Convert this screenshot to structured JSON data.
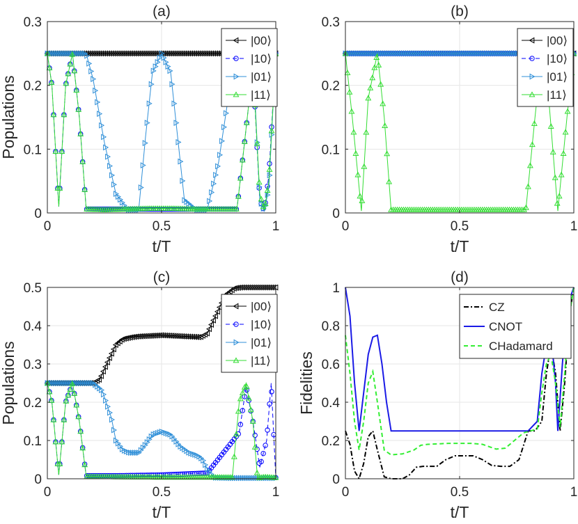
{
  "figure": {
    "panel_order": [
      "a",
      "b",
      "c",
      "d"
    ]
  },
  "chart_data": [
    {
      "id": "a",
      "type": "line",
      "title": "(a)",
      "xlabel": "t/T",
      "ylabel": "Populations",
      "xlim": [
        0,
        1
      ],
      "ylim": [
        0,
        0.3
      ],
      "xticks": [
        0,
        0.5,
        1
      ],
      "xtick_labels": [
        "0",
        "0.5",
        "1"
      ],
      "yticks": [
        0,
        0.1,
        0.2,
        0.3
      ],
      "ytick_labels": [
        "0",
        "0.1",
        "0.2",
        "0.3"
      ],
      "grid": true,
      "legend_position": "top-right",
      "series": [
        {
          "name": "|00⟩",
          "color": "#000000",
          "marker": "triangle-left",
          "dash": "solid",
          "x": [
            0,
            0.1,
            0.2,
            0.3,
            0.4,
            0.5,
            0.6,
            0.7,
            0.8,
            0.9,
            1.0
          ],
          "y": [
            0.25,
            0.25,
            0.25,
            0.25,
            0.25,
            0.25,
            0.25,
            0.25,
            0.25,
            0.25,
            0.25
          ]
        },
        {
          "name": "|10⟩",
          "color": "#0000ff",
          "marker": "circle",
          "dash": "dashed",
          "x": [
            0,
            0.02,
            0.05,
            0.08,
            0.11,
            0.14,
            0.17,
            0.25,
            0.35,
            0.45,
            0.5,
            0.55,
            0.65,
            0.75,
            0.83,
            0.86,
            0.9,
            0.93,
            0.95,
            0.97,
            1.0
          ],
          "y": [
            0.25,
            0.2,
            0.01,
            0.2,
            0.25,
            0.15,
            0.006,
            0.006,
            0.006,
            0.006,
            0.006,
            0.006,
            0.006,
            0.006,
            0.006,
            0.1,
            0.23,
            0.02,
            0.003,
            0.06,
            0.25
          ]
        },
        {
          "name": "|01⟩",
          "color": "#2f8fd8",
          "marker": "triangle-right",
          "dash": "solid",
          "x": [
            0,
            0.1,
            0.17,
            0.2,
            0.25,
            0.3,
            0.35,
            0.4,
            0.43,
            0.46,
            0.5,
            0.54,
            0.57,
            0.6,
            0.65,
            0.7,
            0.75,
            0.8,
            0.83,
            0.86,
            0.9,
            0.93,
            0.95,
            0.97,
            1.0
          ],
          "y": [
            0.25,
            0.25,
            0.25,
            0.21,
            0.11,
            0.03,
            0.005,
            0.005,
            0.12,
            0.22,
            0.25,
            0.22,
            0.12,
            0.02,
            0.005,
            0.005,
            0.08,
            0.2,
            0.25,
            0.25,
            0.25,
            0.02,
            0.003,
            0.04,
            0.25
          ]
        },
        {
          "name": "|11⟩",
          "color": "#33dd33",
          "marker": "triangle-up",
          "dash": "solid",
          "x": [
            0,
            0.02,
            0.05,
            0.08,
            0.11,
            0.14,
            0.17,
            0.25,
            0.35,
            0.45,
            0.5,
            0.55,
            0.65,
            0.75,
            0.83,
            0.86,
            0.9,
            0.93,
            0.95,
            0.97,
            1.0
          ],
          "y": [
            0.25,
            0.2,
            0.01,
            0.2,
            0.25,
            0.15,
            0.006,
            0.005,
            0.006,
            0.007,
            0.007,
            0.007,
            0.006,
            0.006,
            0.006,
            0.1,
            0.23,
            0.03,
            0.004,
            0.05,
            0.25
          ]
        }
      ]
    },
    {
      "id": "b",
      "type": "line",
      "title": "(b)",
      "xlabel": "t/T",
      "ylabel": "",
      "xlim": [
        0,
        1
      ],
      "ylim": [
        0,
        0.3
      ],
      "xticks": [
        0,
        0.5,
        1
      ],
      "xtick_labels": [
        "0",
        "0.5",
        "1"
      ],
      "yticks": [
        0,
        0.1,
        0.2,
        0.3
      ],
      "ytick_labels": [
        "0",
        "0.1",
        "0.2",
        "0.3"
      ],
      "grid": true,
      "legend_position": "top-right",
      "series": [
        {
          "name": "|00⟩",
          "color": "#000000",
          "marker": "triangle-left",
          "dash": "solid",
          "x": [
            0,
            0.1,
            0.2,
            0.3,
            0.4,
            0.5,
            0.6,
            0.7,
            0.8,
            0.9,
            1.0
          ],
          "y": [
            0.25,
            0.25,
            0.25,
            0.25,
            0.25,
            0.25,
            0.25,
            0.25,
            0.25,
            0.25,
            0.25
          ]
        },
        {
          "name": "|10⟩",
          "color": "#0000ff",
          "marker": "circle",
          "dash": "dashed",
          "x": [
            0,
            0.1,
            0.2,
            0.3,
            0.4,
            0.5,
            0.6,
            0.7,
            0.8,
            0.9,
            1.0
          ],
          "y": [
            0.25,
            0.25,
            0.25,
            0.25,
            0.25,
            0.25,
            0.25,
            0.25,
            0.25,
            0.25,
            0.25
          ]
        },
        {
          "name": "|01⟩",
          "color": "#2f8fd8",
          "marker": "triangle-right",
          "dash": "solid",
          "x": [
            0,
            0.1,
            0.2,
            0.3,
            0.4,
            0.5,
            0.6,
            0.7,
            0.8,
            0.9,
            1.0
          ],
          "y": [
            0.25,
            0.25,
            0.25,
            0.25,
            0.25,
            0.25,
            0.25,
            0.25,
            0.25,
            0.25,
            0.25
          ]
        },
        {
          "name": "|11⟩",
          "color": "#33dd33",
          "marker": "triangle-up",
          "dash": "solid",
          "x": [
            0,
            0.03,
            0.07,
            0.1,
            0.14,
            0.17,
            0.2,
            0.3,
            0.4,
            0.5,
            0.6,
            0.7,
            0.79,
            0.83,
            0.86,
            0.89,
            0.93,
            0.97,
            1.0
          ],
          "y": [
            0.25,
            0.15,
            0.003,
            0.18,
            0.25,
            0.15,
            0.005,
            0.005,
            0.005,
            0.005,
            0.005,
            0.005,
            0.005,
            0.15,
            0.25,
            0.18,
            0.003,
            0.15,
            0.25
          ]
        }
      ]
    },
    {
      "id": "c",
      "type": "line",
      "title": "(c)",
      "xlabel": "t/T",
      "ylabel": "Populations",
      "xlim": [
        0,
        1
      ],
      "ylim": [
        0,
        0.5
      ],
      "xticks": [
        0,
        0.5,
        1
      ],
      "xtick_labels": [
        "0",
        "0.5",
        "1"
      ],
      "yticks": [
        0,
        0.1,
        0.2,
        0.3,
        0.4,
        0.5
      ],
      "ytick_labels": [
        "0",
        "0.1",
        "0.2",
        "0.3",
        "0.4",
        "0.5"
      ],
      "grid": true,
      "legend_position": "top-right",
      "series": [
        {
          "name": "|00⟩",
          "color": "#000000",
          "marker": "triangle-left",
          "dash": "solid",
          "x": [
            0,
            0.1,
            0.2,
            0.23,
            0.26,
            0.3,
            0.33,
            0.37,
            0.4,
            0.5,
            0.6,
            0.67,
            0.7,
            0.74,
            0.78,
            0.82,
            0.85,
            0.9,
            1.0
          ],
          "y": [
            0.25,
            0.25,
            0.25,
            0.26,
            0.3,
            0.35,
            0.365,
            0.37,
            0.372,
            0.375,
            0.372,
            0.37,
            0.38,
            0.43,
            0.48,
            0.498,
            0.5,
            0.5,
            0.5
          ]
        },
        {
          "name": "|10⟩",
          "color": "#0000ff",
          "marker": "circle",
          "dash": "dashed",
          "x": [
            0,
            0.02,
            0.05,
            0.08,
            0.11,
            0.14,
            0.17,
            0.3,
            0.5,
            0.7,
            0.84,
            0.87,
            0.9,
            0.93,
            0.96,
            0.98,
            1.0
          ],
          "y": [
            0.25,
            0.2,
            0.01,
            0.2,
            0.25,
            0.15,
            0.008,
            0.008,
            0.01,
            0.015,
            0.12,
            0.24,
            0.15,
            0.03,
            0.1,
            0.25,
            0.003
          ]
        },
        {
          "name": "|01⟩",
          "color": "#2f8fd8",
          "marker": "triangle-right",
          "dash": "solid",
          "x": [
            0,
            0.1,
            0.2,
            0.24,
            0.28,
            0.3,
            0.33,
            0.36,
            0.4,
            0.43,
            0.46,
            0.5,
            0.54,
            0.58,
            0.62,
            0.66,
            0.68,
            0.7,
            0.73,
            0.8,
            0.9,
            1.0
          ],
          "y": [
            0.25,
            0.25,
            0.25,
            0.23,
            0.16,
            0.1,
            0.075,
            0.068,
            0.068,
            0.09,
            0.115,
            0.123,
            0.115,
            0.085,
            0.068,
            0.06,
            0.05,
            0.025,
            0.003,
            0.002,
            0.002,
            0.002
          ]
        },
        {
          "name": "|11⟩",
          "color": "#33dd33",
          "marker": "triangle-up",
          "dash": "solid",
          "x": [
            0,
            0.02,
            0.05,
            0.08,
            0.11,
            0.14,
            0.17,
            0.3,
            0.5,
            0.7,
            0.81,
            0.84,
            0.87,
            0.9,
            0.92,
            0.95,
            1.0
          ],
          "y": [
            0.25,
            0.2,
            0.01,
            0.2,
            0.25,
            0.15,
            0.006,
            0.005,
            0.004,
            0.004,
            0.004,
            0.2,
            0.25,
            0.15,
            0.002,
            0.005,
            0.003
          ]
        }
      ]
    },
    {
      "id": "d",
      "type": "line",
      "title": "(d)",
      "xlabel": "t/T",
      "ylabel": "Fidelities",
      "xlim": [
        0,
        1
      ],
      "ylim": [
        0,
        1
      ],
      "xticks": [
        0,
        0.5,
        1
      ],
      "xtick_labels": [
        "0",
        "0.5",
        "1"
      ],
      "yticks": [
        0,
        0.2,
        0.4,
        0.6,
        0.8,
        1
      ],
      "ytick_labels": [
        "0",
        "0.2",
        "0.4",
        "0.6",
        "0.8",
        "1"
      ],
      "grid": true,
      "legend_position": "top-right",
      "series": [
        {
          "name": "CZ",
          "color": "#000000",
          "marker": "none",
          "dash": "dashdot",
          "x": [
            0,
            0.02,
            0.04,
            0.06,
            0.08,
            0.1,
            0.12,
            0.14,
            0.17,
            0.2,
            0.25,
            0.28,
            0.31,
            0.34,
            0.4,
            0.44,
            0.48,
            0.52,
            0.56,
            0.6,
            0.64,
            0.68,
            0.72,
            0.76,
            0.8,
            0.83,
            0.86,
            0.88,
            0.9,
            0.92,
            0.94,
            0.96,
            0.98,
            1.0
          ],
          "y": [
            0.25,
            0.18,
            0.04,
            0.0,
            0.08,
            0.22,
            0.25,
            0.15,
            0.01,
            0.0,
            0.0,
            0.02,
            0.06,
            0.065,
            0.065,
            0.1,
            0.12,
            0.12,
            0.12,
            0.1,
            0.07,
            0.065,
            0.065,
            0.1,
            0.25,
            0.25,
            0.3,
            0.55,
            0.7,
            0.55,
            0.25,
            0.5,
            0.85,
            1.0
          ]
        },
        {
          "name": "CNOT",
          "color": "#1a1ae6",
          "marker": "none",
          "dash": "solid",
          "x": [
            0,
            0.02,
            0.04,
            0.06,
            0.08,
            0.1,
            0.12,
            0.14,
            0.16,
            0.18,
            0.2,
            0.3,
            0.4,
            0.5,
            0.6,
            0.7,
            0.8,
            0.84,
            0.86,
            0.88,
            0.9,
            0.92,
            0.93,
            0.95,
            0.97,
            1.0
          ],
          "y": [
            1.0,
            0.85,
            0.5,
            0.25,
            0.45,
            0.65,
            0.74,
            0.75,
            0.6,
            0.4,
            0.25,
            0.25,
            0.25,
            0.25,
            0.25,
            0.25,
            0.25,
            0.3,
            0.55,
            0.7,
            0.75,
            0.5,
            0.25,
            0.6,
            0.9,
            1.0
          ]
        },
        {
          "name": "CHadamard",
          "color": "#33ee33",
          "marker": "none",
          "dash": "dashed",
          "x": [
            0,
            0.02,
            0.04,
            0.06,
            0.08,
            0.1,
            0.12,
            0.14,
            0.17,
            0.2,
            0.25,
            0.3,
            0.33,
            0.36,
            0.45,
            0.5,
            0.55,
            0.6,
            0.66,
            0.7,
            0.74,
            0.78,
            0.81,
            0.84,
            0.86,
            0.88,
            0.9,
            0.92,
            0.94,
            0.96,
            0.98,
            1.0
          ],
          "y": [
            0.75,
            0.55,
            0.3,
            0.15,
            0.3,
            0.5,
            0.56,
            0.4,
            0.15,
            0.125,
            0.13,
            0.15,
            0.175,
            0.18,
            0.185,
            0.185,
            0.185,
            0.18,
            0.155,
            0.16,
            0.2,
            0.24,
            0.25,
            0.26,
            0.45,
            0.6,
            0.65,
            0.5,
            0.27,
            0.55,
            0.85,
            1.0
          ]
        }
      ]
    }
  ]
}
